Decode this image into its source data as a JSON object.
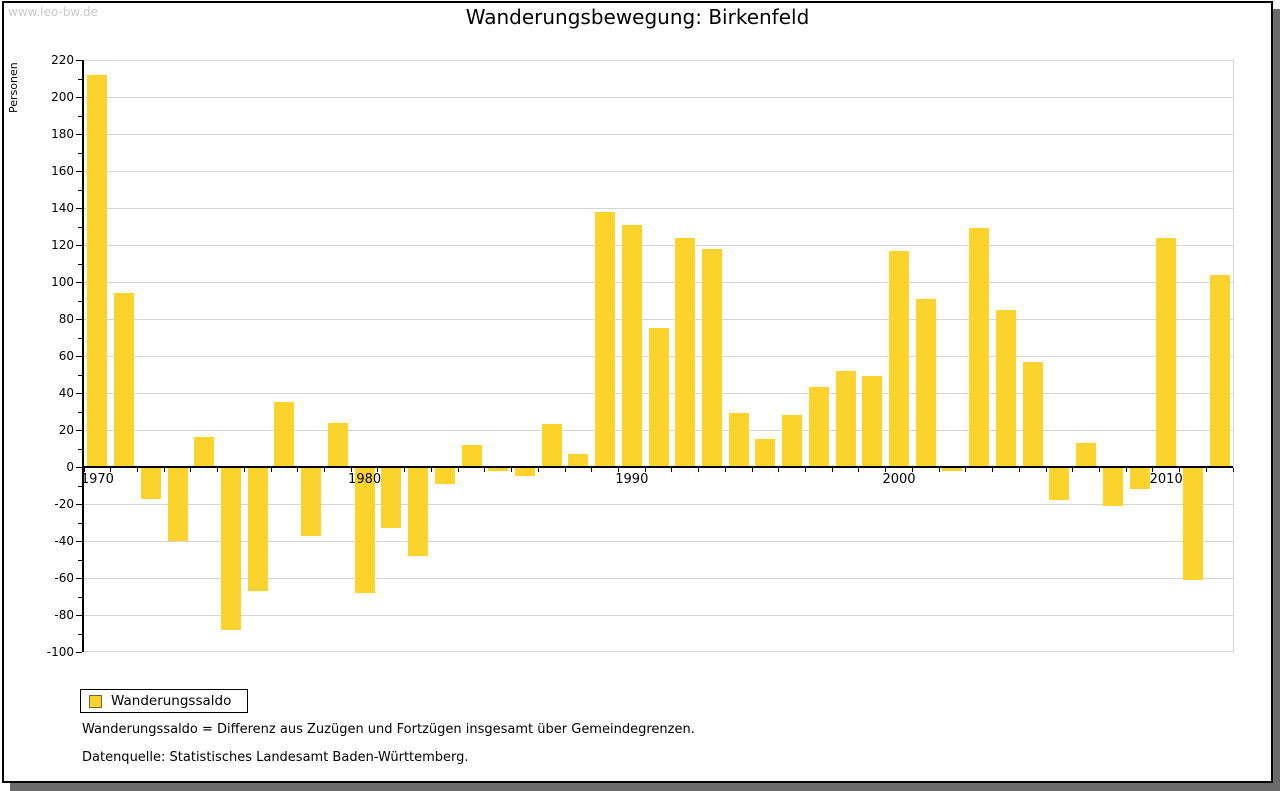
{
  "watermark": "www.leo-bw.de",
  "title": "Wanderungsbewegung: Birkenfeld",
  "y_axis_label": "Personen",
  "legend": {
    "label": "Wanderungssaldo"
  },
  "footnotes": {
    "definition": "Wanderungssaldo = Differenz aus Zuzügen und Fortzügen insgesamt über Gemeindegrenzen.",
    "source": "Datenquelle: Statistisches Landesamt Baden-Württemberg."
  },
  "colors": {
    "bar": "#fcd32c",
    "grid": "#d6d6d6",
    "axis": "#000000",
    "watermark": "#c9c9c9",
    "window_shadow": "#6b6b6b",
    "legend_swatch_border": "#6b6b3a"
  },
  "chart_data": {
    "type": "bar",
    "title": "Wanderungsbewegung: Birkenfeld",
    "ylabel": "Personen",
    "series_name": "Wanderungssaldo",
    "years": [
      1970,
      1971,
      1972,
      1973,
      1974,
      1975,
      1976,
      1977,
      1978,
      1979,
      1980,
      1981,
      1982,
      1983,
      1984,
      1985,
      1986,
      1987,
      1988,
      1989,
      1990,
      1991,
      1992,
      1993,
      1994,
      1995,
      1996,
      1997,
      1998,
      1999,
      2000,
      2001,
      2002,
      2003,
      2004,
      2005,
      2006,
      2007,
      2008,
      2009,
      2010,
      2011,
      2012
    ],
    "values": [
      212,
      94,
      -17,
      -40,
      16,
      -88,
      -67,
      35,
      -37,
      24,
      -68,
      -33,
      -48,
      -9,
      12,
      -2,
      -5,
      23,
      7,
      138,
      131,
      75,
      124,
      118,
      29,
      15,
      28,
      43,
      52,
      49,
      117,
      91,
      -2,
      129,
      85,
      57,
      -18,
      13,
      -21,
      -12,
      124,
      -61,
      104
    ],
    "ylim": [
      -100,
      220
    ],
    "ytick_step": 20,
    "ytick_minor_step": 10,
    "yticks": [
      220,
      200,
      180,
      160,
      140,
      120,
      100,
      80,
      60,
      40,
      20,
      0,
      -20,
      -40,
      -60,
      -80,
      -100
    ],
    "xticks": [
      1970,
      1980,
      1990,
      2000,
      2010
    ],
    "grid": true,
    "legend_position": "bottom-left"
  }
}
